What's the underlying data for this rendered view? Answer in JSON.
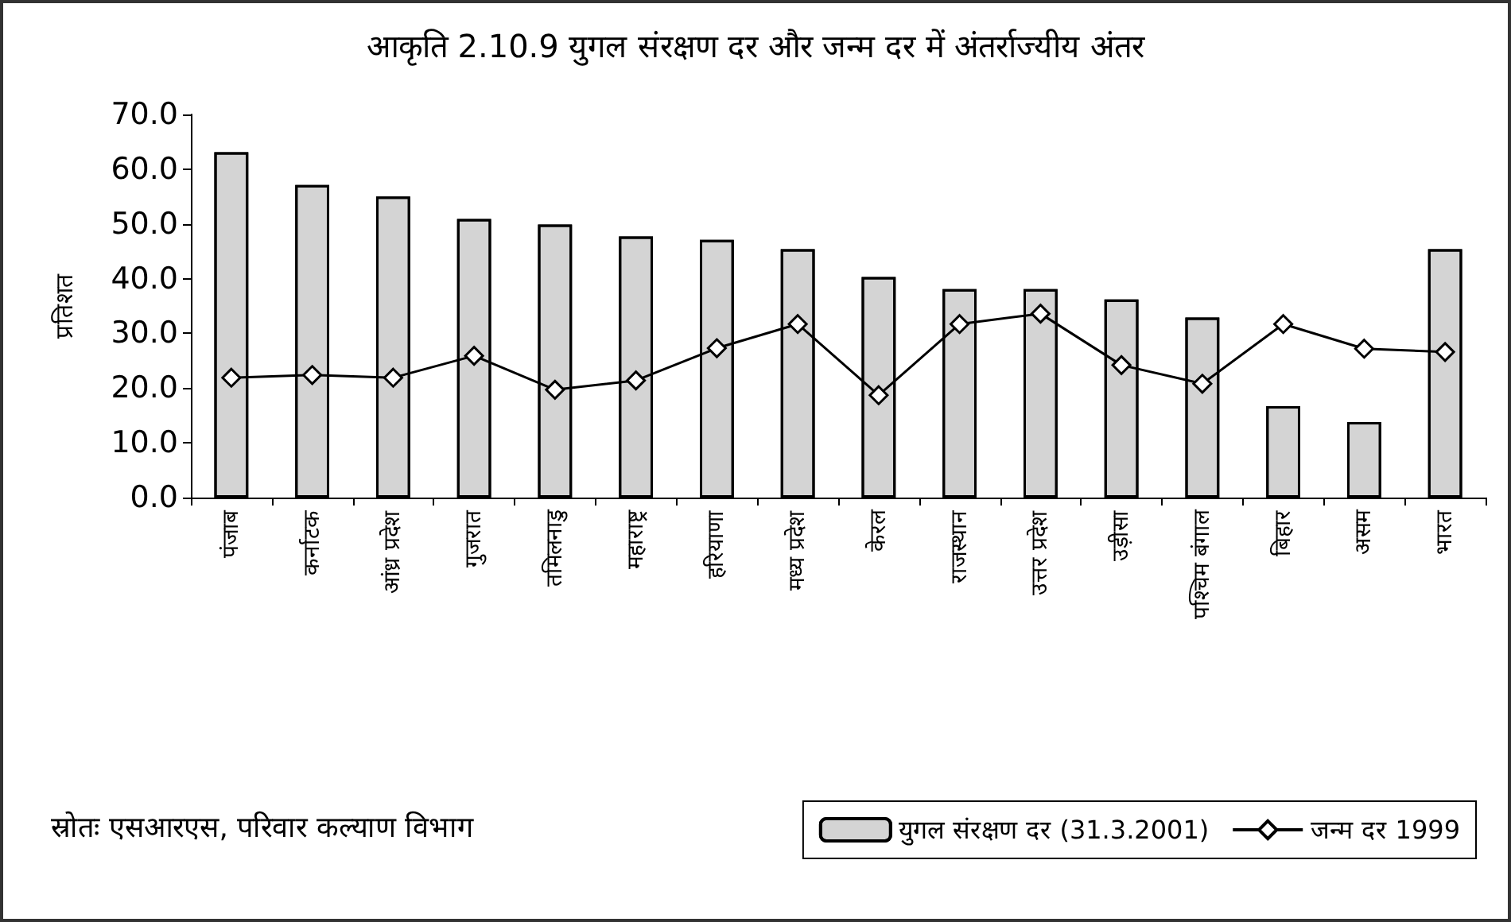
{
  "chart_data": {
    "type": "bar",
    "title": "आकृति 2.10.9 युगल संरक्षण दर और जन्म दर में अंतर्राज्यीय अंतर",
    "ylabel": "प्रतिशत",
    "categories": [
      "पंजाब",
      "कर्नाटक",
      "आंध्र प्रदेश",
      "गुजरात",
      "तमिलनाडु",
      "महाराष्ट्र",
      "हरियाणा",
      "मध्य प्रदेश",
      "केरल",
      "राजस्थान",
      "उत्तर प्रदेश",
      "उड़ीसा",
      "पश्चिम बंगाल",
      "बिहार",
      "असम",
      "भारत"
    ],
    "series": [
      {
        "name": "युगल संरक्षण दर (31.3.2001)",
        "color": "#d4d4d4",
        "values": [
          63.1,
          57.1,
          55.0,
          50.9,
          49.9,
          47.7,
          47.1,
          45.4,
          40.3,
          38.1,
          38.1,
          36.2,
          32.9,
          16.7,
          13.8,
          45.4
        ]
      },
      {
        "name": "जन्म दर 1999",
        "type": "line",
        "color": "#000000",
        "marker": "diamond",
        "values": [
          21.9,
          22.4,
          21.9,
          25.9,
          19.7,
          21.4,
          27.3,
          31.7,
          18.7,
          31.7,
          33.6,
          24.2,
          20.8,
          31.7,
          27.2,
          26.6
        ]
      }
    ],
    "ylim": [
      0,
      70
    ],
    "yticks": [
      {
        "value": 0,
        "label": "0.0"
      },
      {
        "value": 10,
        "label": "10.0"
      },
      {
        "value": 20,
        "label": "20.0"
      },
      {
        "value": 30,
        "label": "30.0"
      },
      {
        "value": 40,
        "label": "40.0"
      },
      {
        "value": 50,
        "label": "50.0"
      },
      {
        "value": 60,
        "label": "60.0"
      },
      {
        "value": 70,
        "label": "70.0"
      }
    ],
    "grid": false,
    "legend": "bottom right",
    "annotations": [
      "स्रोतः एसआरएस, परिवार कल्याण विभाग"
    ]
  }
}
